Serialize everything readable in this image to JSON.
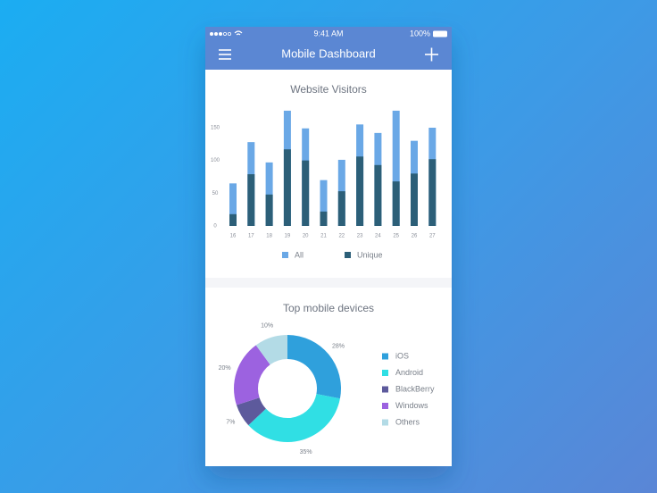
{
  "status_bar": {
    "time": "9:41 AM",
    "battery": "100%"
  },
  "header": {
    "title": "Mobile Dashboard"
  },
  "chart_data": [
    {
      "type": "bar",
      "title": "Website Visitors",
      "categories": [
        "16",
        "17",
        "18",
        "19",
        "20",
        "21",
        "22",
        "23",
        "24",
        "25",
        "26",
        "27"
      ],
      "series": [
        {
          "name": "All",
          "color": "#6aa8e6",
          "values": [
            65,
            128,
            97,
            176,
            149,
            70,
            101,
            155,
            142,
            176,
            130,
            150
          ]
        },
        {
          "name": "Unique",
          "color": "#2c5f78",
          "values": [
            18,
            79,
            48,
            117,
            100,
            22,
            53,
            106,
            93,
            68,
            80,
            102
          ]
        }
      ],
      "ylim": [
        0,
        180
      ],
      "yticks": [
        0,
        50,
        100,
        150
      ]
    },
    {
      "type": "pie",
      "title": "Top mobile devices",
      "donut": true,
      "categories": [
        "iOS",
        "Android",
        "BlackBerry",
        "Windows",
        "Others"
      ],
      "values": [
        28,
        35,
        7,
        20,
        10
      ],
      "value_labels": [
        "28%",
        "35%",
        "7%",
        "20%",
        "10%"
      ],
      "colors": [
        "#2fa0dc",
        "#30dfe4",
        "#5d5a9c",
        "#9c62e0",
        "#b3dbe6"
      ]
    }
  ]
}
